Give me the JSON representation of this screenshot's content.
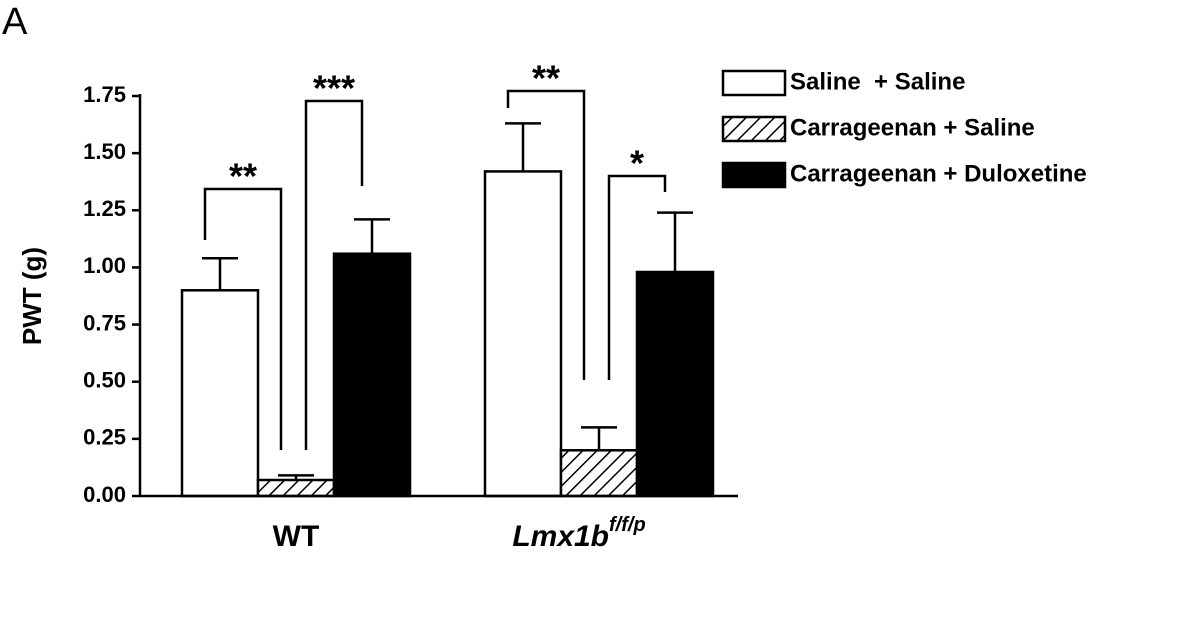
{
  "chart_data": {
    "type": "bar",
    "panel_label": "A",
    "ylabel": "PWT (g)",
    "categories": [
      "WT",
      "Lmx1b"
    ],
    "category_superscripts": [
      null,
      "f/f/p"
    ],
    "series": [
      {
        "name": "Saline  + Saline",
        "color": "#ffffff",
        "values": [
          0.9,
          1.42
        ],
        "errors": [
          0.14,
          0.21
        ]
      },
      {
        "name": "Carrageenan + Saline",
        "color": "#ffffff",
        "pattern": "hatch",
        "values": [
          0.07,
          0.2
        ],
        "errors": [
          0.02,
          0.1
        ]
      },
      {
        "name": "Carrageenan + Duloxetine",
        "color": "#000000",
        "values": [
          1.06,
          0.98
        ],
        "errors": [
          0.15,
          0.26
        ]
      }
    ],
    "ylim": [
      0,
      1.75
    ],
    "yticks": [
      {
        "value": 0,
        "label": "0.00"
      },
      {
        "value": 0.25,
        "label": "0.25"
      },
      {
        "value": 0.5,
        "label": "0.50"
      },
      {
        "value": 0.75,
        "label": "0.75"
      },
      {
        "value": 1,
        "label": "1.00"
      },
      {
        "value": 1.25,
        "label": "1.25"
      },
      {
        "value": 1.5,
        "label": "1.50"
      },
      {
        "value": 1.75,
        "label": "1.75"
      }
    ],
    "annotations": [
      "**",
      "***",
      "**",
      "*"
    ],
    "legend": "upper right"
  }
}
